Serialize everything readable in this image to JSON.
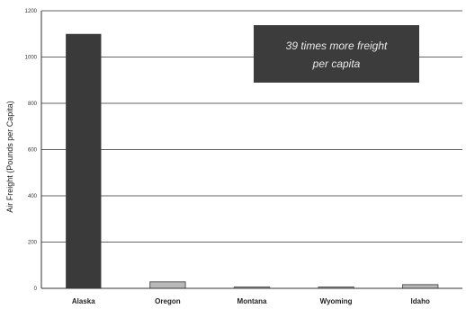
{
  "chart_data": {
    "type": "bar",
    "title": "",
    "xlabel": "",
    "ylabel": "Air Freight (Pounds per Capita)",
    "categories": [
      "Alaska",
      "Oregon",
      "Montana",
      "Wyoming",
      "Idaho"
    ],
    "values": [
      1100,
      28,
      3,
      5,
      16
    ],
    "ylim": [
      0,
      1200
    ],
    "yticks": [
      0,
      200,
      400,
      600,
      800,
      1000,
      1200
    ],
    "grid": true,
    "legend": "none",
    "annotation": {
      "lines": [
        "39 times more freight",
        "per capita"
      ]
    },
    "colors": {
      "alaska_bar": "#3a3a3a",
      "other_bars_fill": "#b8b8b8",
      "other_bars_stroke": "#555555",
      "annotation_bg": "#3c3c3c",
      "grid": "#333333"
    }
  }
}
